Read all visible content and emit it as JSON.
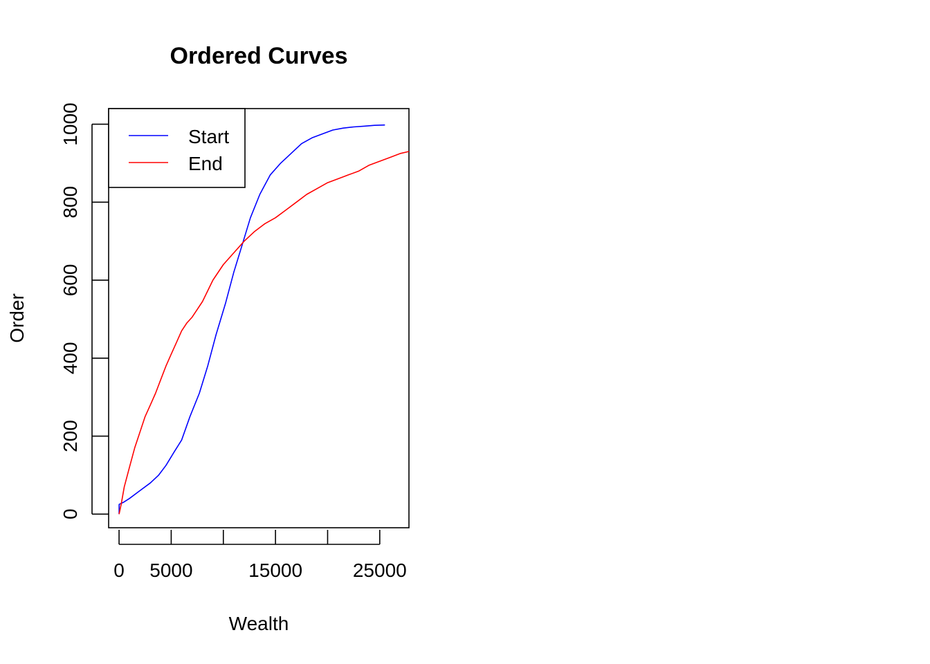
{
  "chart_data": {
    "type": "line",
    "title": "Ordered Curves",
    "xlabel": "Wealth",
    "ylabel": "Order",
    "xlim": [
      -1000,
      27800
    ],
    "ylim": [
      -35,
      1040
    ],
    "x_ticks": [
      0,
      5000,
      10000,
      15000,
      20000,
      25000
    ],
    "x_tick_labels": [
      "0",
      "5000",
      "",
      "15000",
      "",
      "25000"
    ],
    "y_ticks": [
      0,
      200,
      400,
      600,
      800,
      1000
    ],
    "y_tick_labels": [
      "0",
      "200",
      "400",
      "600",
      "800",
      "1000"
    ],
    "grid": false,
    "legend": {
      "position": "top-left",
      "boxed": true
    },
    "series": [
      {
        "name": "Start",
        "color": "#0000ff",
        "x": [
          0,
          10,
          400,
          1000,
          2000,
          3000,
          3800,
          4500,
          5300,
          6000,
          6800,
          7700,
          8500,
          9300,
          10200,
          11000,
          11800,
          12600,
          13500,
          14500,
          15500,
          16500,
          17500,
          18500,
          19500,
          20500,
          21500,
          22500,
          23500,
          24500,
          25500
        ],
        "y": [
          0,
          25,
          30,
          40,
          60,
          80,
          100,
          125,
          160,
          190,
          250,
          310,
          380,
          460,
          540,
          620,
          690,
          760,
          820,
          870,
          900,
          925,
          950,
          965,
          975,
          985,
          990,
          993,
          995,
          997,
          998
        ]
      },
      {
        "name": "End",
        "color": "#ff0000",
        "x": [
          0,
          200,
          500,
          1000,
          1500,
          2000,
          2500,
          3000,
          3500,
          4000,
          4500,
          5000,
          5500,
          6000,
          6500,
          7000,
          7500,
          8000,
          9000,
          10000,
          11000,
          12000,
          13000,
          14000,
          15000,
          16000,
          17000,
          18000,
          19000,
          20000,
          21000,
          22000,
          23000,
          24000,
          25000,
          26000,
          27000,
          27800
        ],
        "y": [
          0,
          25,
          70,
          120,
          170,
          210,
          250,
          280,
          310,
          345,
          380,
          410,
          440,
          470,
          490,
          505,
          525,
          545,
          600,
          640,
          670,
          700,
          725,
          745,
          760,
          780,
          800,
          820,
          835,
          850,
          860,
          870,
          880,
          895,
          905,
          915,
          925,
          930
        ]
      }
    ]
  }
}
